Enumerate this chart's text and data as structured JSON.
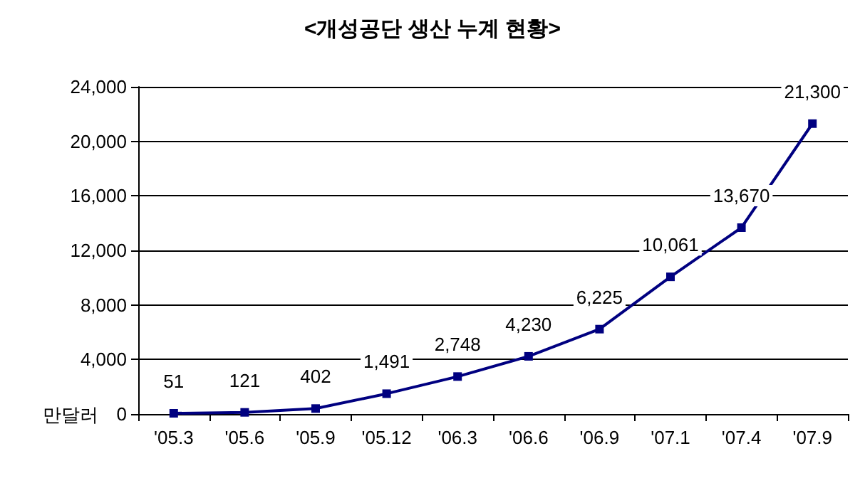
{
  "chart_data": {
    "type": "line",
    "title": "<개성공단 생산 누계 현황>",
    "ylabel": "만달러",
    "categories": [
      "'05.3",
      "'05.6",
      "'05.9",
      "'05.12",
      "'06.3",
      "'06.6",
      "'06.9",
      "'07.1",
      "'07.4",
      "'07.9"
    ],
    "series": [
      {
        "color": "#000080",
        "values": [
          51,
          121,
          402,
          1491,
          2748,
          4230,
          6225,
          10061,
          13670,
          21300
        ],
        "value_labels": [
          "51",
          "121",
          "402",
          "1,491",
          "2,748",
          "4,230",
          "6,225",
          "10,061",
          "13,670",
          "21,300"
        ]
      }
    ],
    "ylim": [
      0,
      24000
    ],
    "yticks": [
      0,
      {
        "value": 4000,
        "label": "4,000"
      },
      {
        "value": 8000,
        "label": "8,000"
      },
      {
        "value": 12000,
        "label": "12,000"
      },
      {
        "value": 16000,
        "label": "16,000"
      },
      {
        "value": 20000,
        "label": "20,000"
      },
      {
        "value": 24000,
        "label": "24,000"
      }
    ],
    "grid": "y",
    "marker": "square",
    "line_style": "solid"
  }
}
